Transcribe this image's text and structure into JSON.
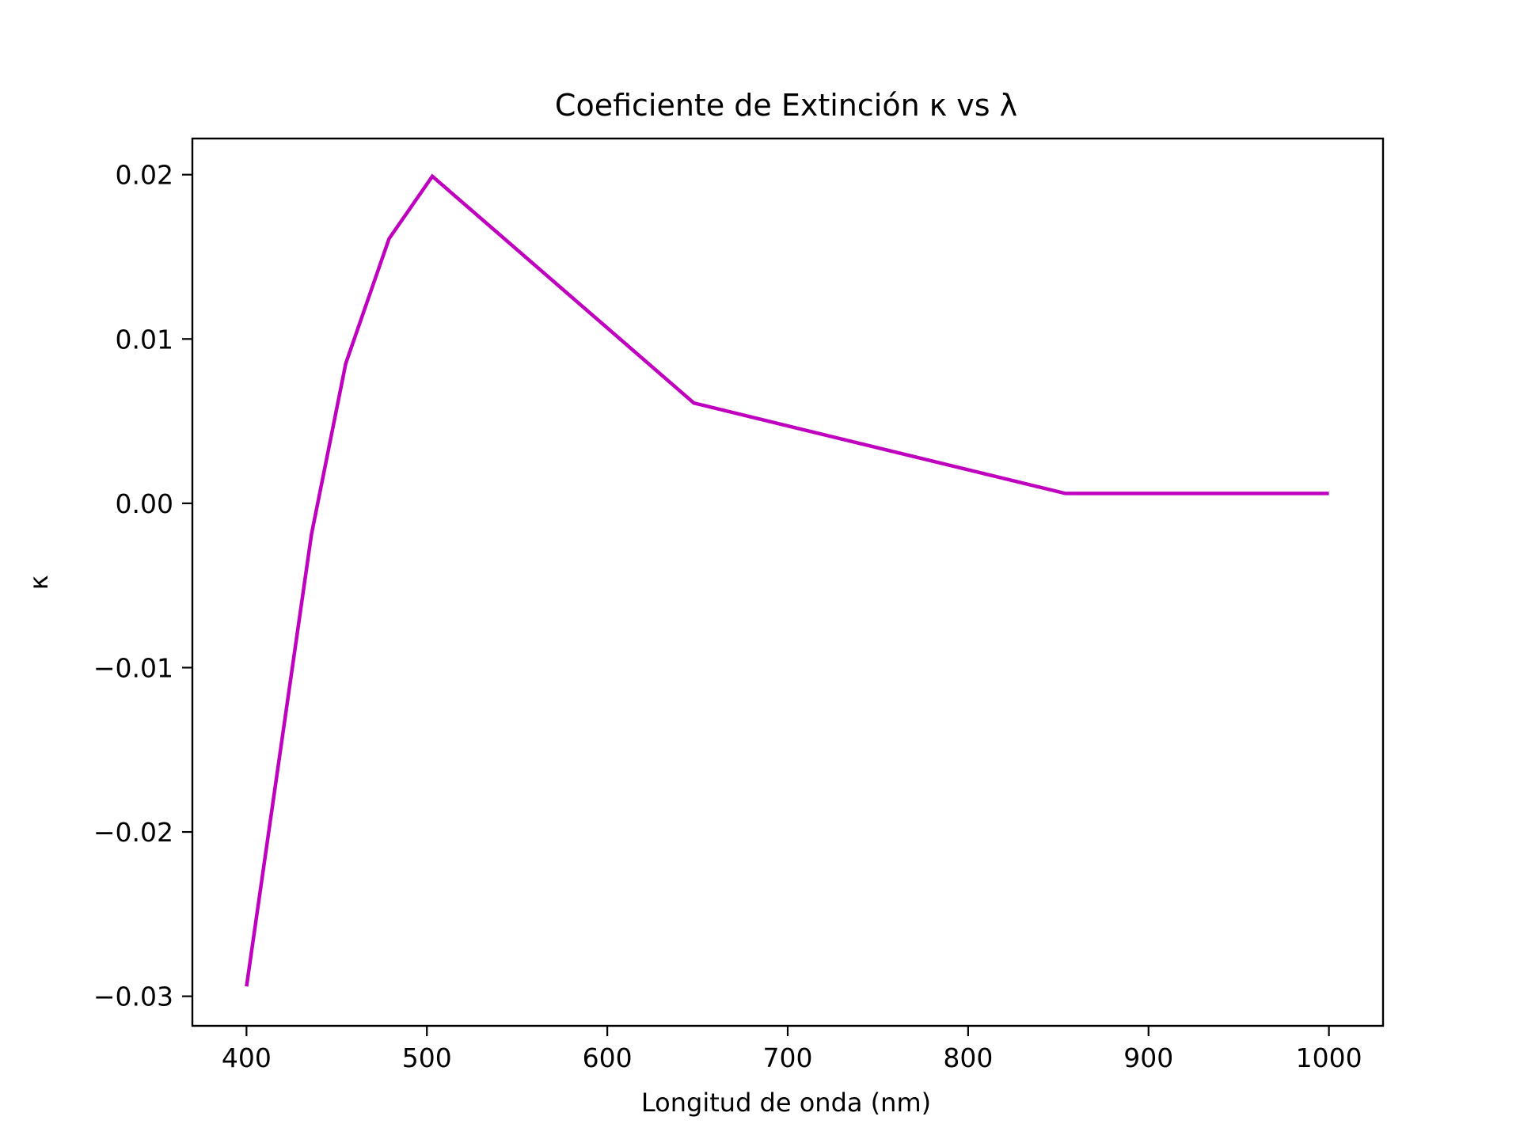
{
  "chart_data": {
    "type": "line",
    "title": "Coeficiente de Extinción κ vs λ",
    "xlabel": "Longitud de onda (nm)",
    "ylabel": "κ",
    "xlim": [
      370,
      1030
    ],
    "ylim": [
      -0.0318,
      0.0222
    ],
    "xticks": [
      400,
      500,
      600,
      700,
      800,
      900,
      1000
    ],
    "xtick_labels": [
      "400",
      "500",
      "600",
      "700",
      "800",
      "900",
      "1000"
    ],
    "yticks": [
      -0.03,
      -0.02,
      -0.01,
      0.0,
      0.01,
      0.02
    ],
    "ytick_labels": [
      "−0.03",
      "−0.02",
      "−0.01",
      "0.00",
      "0.01",
      "0.02"
    ],
    "grid": false,
    "series": [
      {
        "color": "#bf00bf",
        "x": [
          400,
          436,
          455,
          479,
          503,
          648,
          854,
          1000
        ],
        "y": [
          -0.0294,
          -0.0019,
          0.0085,
          0.0161,
          0.0199,
          0.0061,
          0.0006,
          0.0006
        ]
      }
    ]
  }
}
